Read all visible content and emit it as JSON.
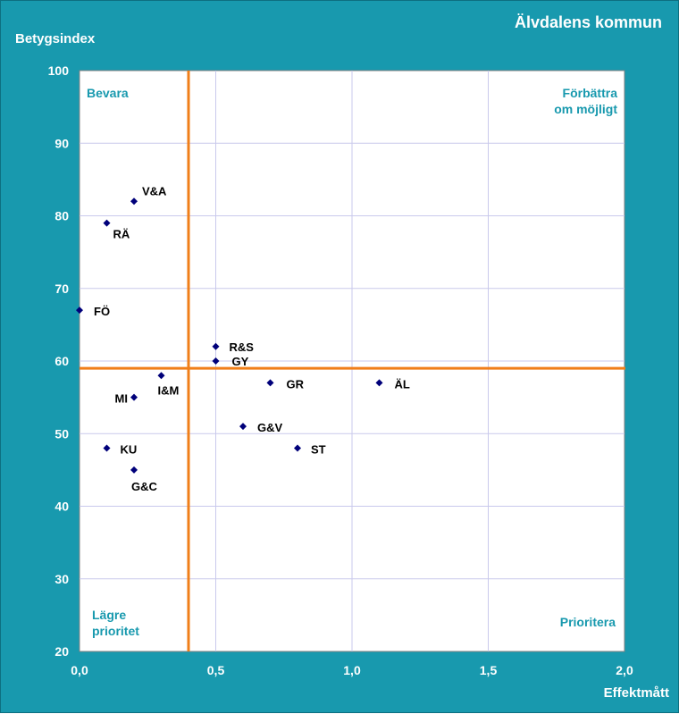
{
  "chart_data": {
    "type": "scatter",
    "title": "Älvdalens kommun",
    "xlabel": "Effektmått",
    "ylabel": "Betygsindex",
    "xlim": [
      0.0,
      2.0
    ],
    "ylim": [
      20,
      100
    ],
    "x_ticks": [
      "0,0",
      "0,5",
      "1,0",
      "1,5",
      "2,0"
    ],
    "y_ticks": [
      "20",
      "30",
      "40",
      "50",
      "60",
      "70",
      "80",
      "90",
      "100"
    ],
    "grid": true,
    "reference_lines": {
      "x": 0.4,
      "y": 59,
      "color": "#F07F1A"
    },
    "marker_color": "#00007A",
    "quadrant_labels": {
      "top_left": [
        "Bevara"
      ],
      "top_right": [
        "Förbättra",
        "om möjligt"
      ],
      "bottom_left": [
        "Lägre",
        "prioritet"
      ],
      "bottom_right": [
        "Prioritera"
      ]
    },
    "points": [
      {
        "label": "V&A",
        "x": 0.2,
        "y": 82
      },
      {
        "label": "RÄ",
        "x": 0.1,
        "y": 79
      },
      {
        "label": "FÖ",
        "x": 0.0,
        "y": 67
      },
      {
        "label": "R&S",
        "x": 0.5,
        "y": 62
      },
      {
        "label": "GY",
        "x": 0.5,
        "y": 60
      },
      {
        "label": "I&M",
        "x": 0.3,
        "y": 58
      },
      {
        "label": "GR",
        "x": 0.7,
        "y": 57
      },
      {
        "label": "ÄL",
        "x": 1.1,
        "y": 57
      },
      {
        "label": "MI",
        "x": 0.2,
        "y": 55
      },
      {
        "label": "G&V",
        "x": 0.6,
        "y": 51
      },
      {
        "label": "KU",
        "x": 0.1,
        "y": 48
      },
      {
        "label": "ST",
        "x": 0.8,
        "y": 48
      },
      {
        "label": "G&C",
        "x": 0.2,
        "y": 45
      }
    ]
  }
}
